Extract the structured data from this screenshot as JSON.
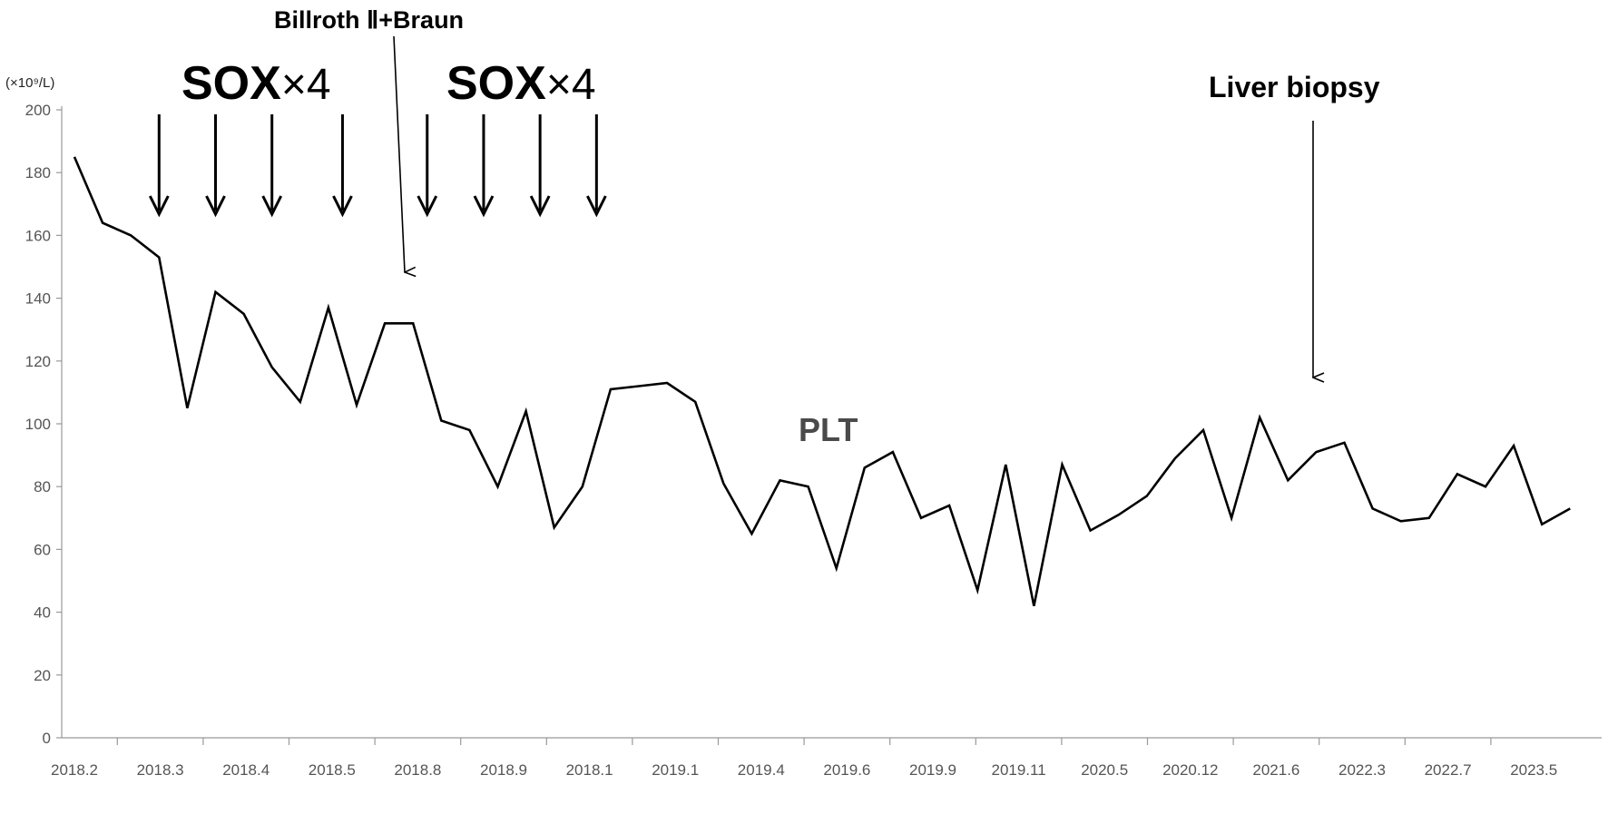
{
  "chart_data": {
    "type": "line",
    "y_unit": "(×10⁹/L)",
    "ylim": [
      0,
      200
    ],
    "yticks": [
      0,
      20,
      40,
      60,
      80,
      100,
      120,
      140,
      160,
      180,
      200
    ],
    "x_tick_labels": [
      "2018.2",
      "2018.3",
      "2018.4",
      "2018.5",
      "2018.8",
      "2018.9",
      "2018.1",
      "2019.1",
      "2019.4",
      "2019.6",
      "2019.9",
      "2019.11",
      "2020.5",
      "2020.12",
      "2021.6",
      "2022.3",
      "2022.7",
      "2023.5"
    ],
    "series": [
      {
        "name": "PLT",
        "values": [
          185,
          164,
          160,
          153,
          105,
          142,
          135,
          118,
          107,
          137,
          106,
          132,
          132,
          101,
          98,
          80,
          104,
          67,
          80,
          111,
          112,
          113,
          107,
          81,
          65,
          82,
          80,
          54,
          86,
          91,
          70,
          74,
          47,
          87,
          42,
          87,
          66,
          71,
          77,
          89,
          98,
          70,
          102,
          82,
          91,
          94,
          73,
          69,
          70,
          84,
          80,
          93,
          68,
          73
        ]
      }
    ],
    "grid": false,
    "annotations": {
      "sox_blocks": [
        {
          "label": "SOX",
          "suffix": "×4",
          "arrow_points": [
            3,
            5,
            7,
            9.5
          ]
        },
        {
          "label": "SOX",
          "suffix": "×4",
          "arrow_points": [
            12.5,
            14.5,
            16.5,
            18.5
          ]
        }
      ],
      "surgery": {
        "label": "Billroth Ⅱ+Braun",
        "point": 12
      },
      "biopsy": {
        "label": "Liver biopsy",
        "point": 44
      }
    }
  }
}
